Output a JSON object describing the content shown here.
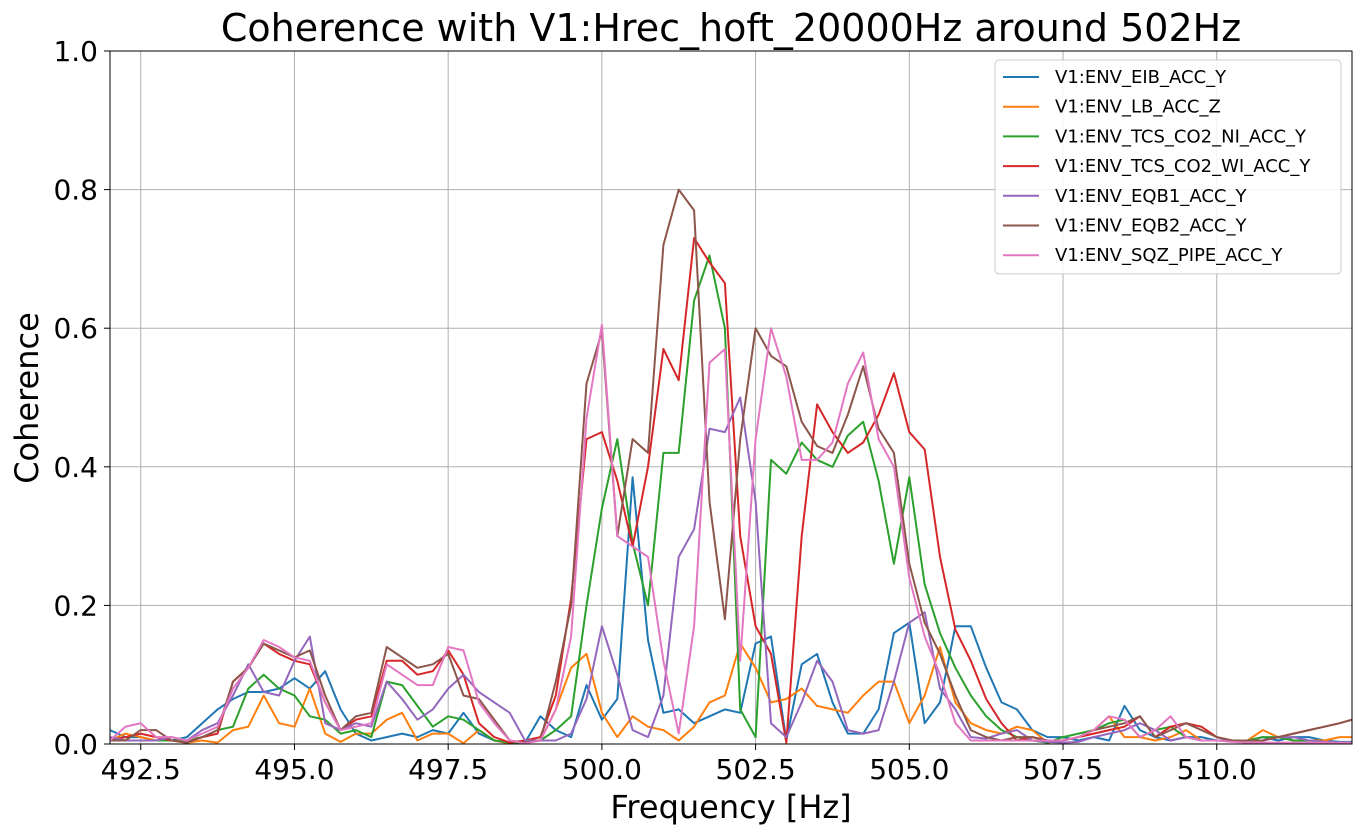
{
  "chart_data": {
    "type": "line",
    "title": "Coherence with V1:Hrec_hoft_20000Hz around 502Hz",
    "xlabel": "Frequency [Hz]",
    "ylabel": "Coherence",
    "xlim": [
      492.0,
      512.2
    ],
    "ylim": [
      0.0,
      1.0
    ],
    "xticks": [
      492.5,
      495.0,
      497.5,
      500.0,
      502.5,
      505.0,
      507.5,
      510.0
    ],
    "xtick_labels": [
      "492.5",
      "495.0",
      "497.5",
      "500.0",
      "502.5",
      "505.0",
      "507.5",
      "510.0"
    ],
    "yticks": [
      0.0,
      0.2,
      0.4,
      0.6,
      0.8,
      1.0
    ],
    "ytick_labels": [
      "0.0",
      "0.2",
      "0.4",
      "0.6",
      "0.8",
      "1.0"
    ],
    "grid": true,
    "legend_position": "top-right",
    "x": [
      492.0,
      492.25,
      492.5,
      492.75,
      493.0,
      493.25,
      493.5,
      493.75,
      494.0,
      494.25,
      494.5,
      494.75,
      495.0,
      495.25,
      495.5,
      495.75,
      496.0,
      496.25,
      496.5,
      496.75,
      497.0,
      497.25,
      497.5,
      497.75,
      498.0,
      498.25,
      498.5,
      498.75,
      499.0,
      499.25,
      499.5,
      499.75,
      500.0,
      500.25,
      500.5,
      500.75,
      501.0,
      501.25,
      501.5,
      501.75,
      502.0,
      502.25,
      502.5,
      502.75,
      503.0,
      503.25,
      503.5,
      503.75,
      504.0,
      504.25,
      504.5,
      504.75,
      505.0,
      505.25,
      505.5,
      505.75,
      506.0,
      506.25,
      506.5,
      506.75,
      507.0,
      507.25,
      507.5,
      507.75,
      508.0,
      508.25,
      508.5,
      508.75,
      509.0,
      509.25,
      509.5,
      509.75,
      510.0,
      510.25,
      510.5,
      510.75,
      511.0,
      511.25,
      511.5,
      511.75,
      512.0,
      512.2
    ],
    "series": [
      {
        "name": "V1:ENV_EIB_ACC_Y",
        "color": "#1f77b4",
        "values": [
          0.02,
          0.01,
          0.01,
          0.005,
          0.005,
          0.01,
          0.03,
          0.05,
          0.065,
          0.075,
          0.075,
          0.08,
          0.095,
          0.08,
          0.105,
          0.05,
          0.015,
          0.005,
          0.01,
          0.015,
          0.01,
          0.02,
          0.015,
          0.045,
          0.015,
          0.005,
          0.001,
          0.002,
          0.04,
          0.02,
          0.01,
          0.085,
          0.035,
          0.065,
          0.385,
          0.15,
          0.045,
          0.05,
          0.03,
          0.04,
          0.05,
          0.045,
          0.145,
          0.155,
          0.005,
          0.115,
          0.13,
          0.06,
          0.015,
          0.015,
          0.05,
          0.16,
          0.175,
          0.03,
          0.06,
          0.17,
          0.17,
          0.11,
          0.06,
          0.05,
          0.02,
          0.01,
          0.01,
          0.005,
          0.01,
          0.005,
          0.055,
          0.02,
          0.01,
          0.005,
          0.01,
          0.01,
          0.005,
          0.005,
          0.005,
          0.01,
          0.005,
          0.01,
          0.01,
          0.005,
          0.003,
          0.003
        ]
      },
      {
        "name": "V1:ENV_LB_ACC_Z",
        "color": "#ff7f0e",
        "values": [
          0.005,
          0.015,
          0.01,
          0.005,
          0.005,
          0.002,
          0.005,
          0.002,
          0.02,
          0.025,
          0.07,
          0.03,
          0.025,
          0.08,
          0.015,
          0.003,
          0.015,
          0.015,
          0.035,
          0.045,
          0.005,
          0.015,
          0.015,
          0.001,
          0.02,
          0.005,
          0.001,
          0.002,
          0.005,
          0.05,
          0.11,
          0.13,
          0.045,
          0.01,
          0.04,
          0.025,
          0.02,
          0.005,
          0.025,
          0.06,
          0.07,
          0.145,
          0.11,
          0.06,
          0.065,
          0.08,
          0.055,
          0.05,
          0.045,
          0.07,
          0.09,
          0.09,
          0.03,
          0.07,
          0.14,
          0.06,
          0.03,
          0.02,
          0.015,
          0.025,
          0.02,
          0.002,
          0.005,
          0.01,
          0.02,
          0.04,
          0.01,
          0.01,
          0.005,
          0.01,
          0.02,
          0.005,
          0.005,
          0.005,
          0.005,
          0.02,
          0.01,
          0.005,
          0.005,
          0.005,
          0.01,
          0.01
        ]
      },
      {
        "name": "V1:ENV_TCS_CO2_NI_ACC_Y",
        "color": "#2ca02c",
        "values": [
          0.005,
          0.005,
          0.005,
          0.005,
          0.005,
          0.005,
          0.01,
          0.02,
          0.025,
          0.08,
          0.1,
          0.08,
          0.07,
          0.04,
          0.035,
          0.015,
          0.02,
          0.01,
          0.09,
          0.085,
          0.055,
          0.025,
          0.04,
          0.035,
          0.02,
          0.005,
          0.002,
          0.002,
          0.005,
          0.02,
          0.04,
          0.2,
          0.34,
          0.44,
          0.29,
          0.2,
          0.42,
          0.42,
          0.64,
          0.705,
          0.6,
          0.05,
          0.01,
          0.41,
          0.39,
          0.435,
          0.41,
          0.4,
          0.445,
          0.465,
          0.38,
          0.26,
          0.385,
          0.23,
          0.16,
          0.11,
          0.07,
          0.04,
          0.02,
          0.01,
          0.005,
          0.002,
          0.01,
          0.015,
          0.02,
          0.03,
          0.035,
          0.01,
          0.02,
          0.025,
          0.01,
          0.005,
          0.005,
          0.005,
          0.005,
          0.01,
          0.01,
          0.005,
          0.005,
          0.003,
          0.002,
          0.002
        ]
      },
      {
        "name": "V1:ENV_TCS_CO2_WI_ACC_Y",
        "color": "#d62728",
        "values": [
          0.005,
          0.01,
          0.015,
          0.01,
          0.005,
          0.002,
          0.01,
          0.015,
          0.09,
          0.11,
          0.145,
          0.13,
          0.12,
          0.115,
          0.06,
          0.02,
          0.035,
          0.04,
          0.12,
          0.12,
          0.1,
          0.105,
          0.135,
          0.1,
          0.03,
          0.01,
          0.002,
          0.005,
          0.01,
          0.07,
          0.21,
          0.44,
          0.45,
          0.38,
          0.285,
          0.4,
          0.57,
          0.525,
          0.73,
          0.695,
          0.665,
          0.3,
          0.17,
          0.13,
          0.002,
          0.3,
          0.49,
          0.45,
          0.42,
          0.435,
          0.475,
          0.535,
          0.45,
          0.425,
          0.27,
          0.165,
          0.12,
          0.065,
          0.03,
          0.005,
          0.01,
          0.005,
          0.005,
          0.01,
          0.015,
          0.02,
          0.025,
          0.04,
          0.01,
          0.025,
          0.03,
          0.025,
          0.01,
          0.005,
          0.005,
          0.005,
          0.01,
          0.015,
          0.02,
          0.025,
          0.03,
          0.035
        ]
      },
      {
        "name": "V1:ENV_EQB1_ACC_Y",
        "color": "#9467bd",
        "values": [
          0.01,
          0.005,
          0.005,
          0.005,
          0.01,
          0.005,
          0.02,
          0.03,
          0.07,
          0.115,
          0.075,
          0.07,
          0.12,
          0.155,
          0.03,
          0.02,
          0.03,
          0.025,
          0.09,
          0.065,
          0.035,
          0.05,
          0.08,
          0.1,
          0.075,
          0.06,
          0.045,
          0.005,
          0.005,
          0.005,
          0.015,
          0.065,
          0.17,
          0.1,
          0.02,
          0.01,
          0.07,
          0.27,
          0.31,
          0.455,
          0.45,
          0.5,
          0.35,
          0.03,
          0.01,
          0.06,
          0.12,
          0.09,
          0.02,
          0.015,
          0.02,
          0.09,
          0.175,
          0.19,
          0.08,
          0.05,
          0.01,
          0.008,
          0.015,
          0.02,
          0.005,
          0.003,
          0.002,
          0.003,
          0.01,
          0.015,
          0.02,
          0.03,
          0.02,
          0.005,
          0.01,
          0.005,
          0.005,
          0.005,
          0.005,
          0.005,
          0.01,
          0.01,
          0.005,
          0.003,
          0.002,
          0.002
        ]
      },
      {
        "name": "V1:ENV_EQB2_ACC_Y",
        "color": "#8c564b",
        "values": [
          0.005,
          0.005,
          0.02,
          0.02,
          0.005,
          0.002,
          0.01,
          0.02,
          0.09,
          0.11,
          0.145,
          0.135,
          0.125,
          0.135,
          0.07,
          0.02,
          0.04,
          0.045,
          0.14,
          0.125,
          0.11,
          0.115,
          0.13,
          0.07,
          0.065,
          0.035,
          0.005,
          0.002,
          0.005,
          0.09,
          0.2,
          0.52,
          0.595,
          0.3,
          0.44,
          0.42,
          0.72,
          0.8,
          0.77,
          0.35,
          0.18,
          0.44,
          0.6,
          0.56,
          0.545,
          0.465,
          0.43,
          0.42,
          0.475,
          0.545,
          0.455,
          0.42,
          0.26,
          0.175,
          0.13,
          0.07,
          0.02,
          0.01,
          0.005,
          0.01,
          0.01,
          0.005,
          0.005,
          0.01,
          0.02,
          0.025,
          0.03,
          0.04,
          0.01,
          0.02,
          0.03,
          0.02,
          0.01,
          0.005,
          0.005,
          0.005,
          0.01,
          0.015,
          0.02,
          0.025,
          0.03,
          0.035
        ]
      },
      {
        "name": "V1:ENV_SQZ_PIPE_ACC_Y",
        "color": "#e377c2",
        "values": [
          0.005,
          0.025,
          0.03,
          0.01,
          0.01,
          0.005,
          0.015,
          0.025,
          0.08,
          0.11,
          0.15,
          0.14,
          0.125,
          0.12,
          0.06,
          0.02,
          0.025,
          0.03,
          0.115,
          0.1,
          0.085,
          0.085,
          0.14,
          0.135,
          0.06,
          0.03,
          0.005,
          0.001,
          0.005,
          0.05,
          0.155,
          0.47,
          0.605,
          0.3,
          0.285,
          0.27,
          0.12,
          0.015,
          0.17,
          0.55,
          0.57,
          0.12,
          0.44,
          0.6,
          0.53,
          0.41,
          0.41,
          0.435,
          0.52,
          0.565,
          0.44,
          0.4,
          0.24,
          0.155,
          0.1,
          0.03,
          0.005,
          0.005,
          0.005,
          0.005,
          0.005,
          0.005,
          0.005,
          0.01,
          0.02,
          0.04,
          0.035,
          0.01,
          0.02,
          0.04,
          0.01,
          0.005,
          0.005,
          0.003,
          0.002,
          0.002,
          0.002,
          0.002,
          0.002,
          0.002,
          0.002,
          0.002
        ]
      }
    ]
  }
}
